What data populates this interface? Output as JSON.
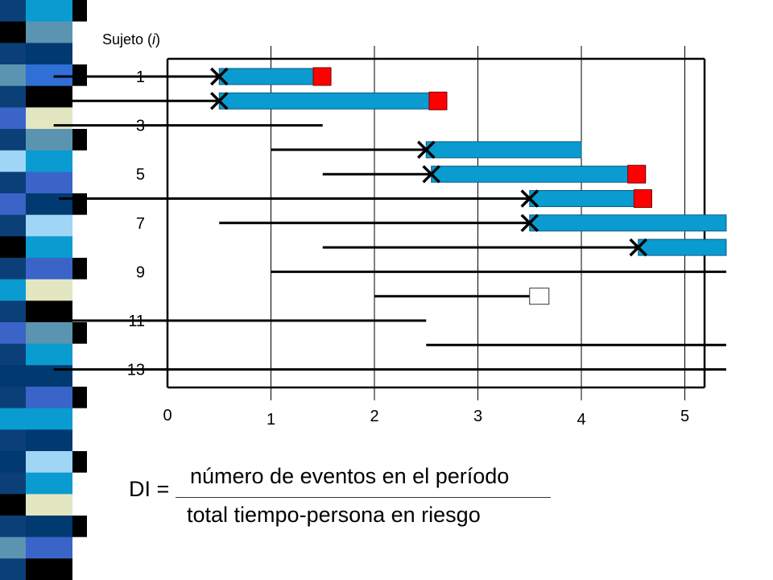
{
  "y_axis_title": "Sujeto (i)",
  "y_axis_title_prefix": "Sujeto (",
  "y_axis_title_var": "i",
  "y_axis_title_suffix": ")",
  "y_tick_labels": [
    "1",
    "3",
    "5",
    "7",
    "9",
    "11",
    "13"
  ],
  "x_origin_label": "0",
  "x_tick_labels": [
    "1",
    "2",
    "3",
    "4",
    "5"
  ],
  "x_axis_max": 5.4,
  "formula": {
    "lhs": "DI =",
    "numerator": "número de eventos en el período",
    "denominator": "total tiempo-persona en riesgo"
  },
  "colors": {
    "risk_bar": "#0a9bd0",
    "event_marker": "#ff0000",
    "censored_marker": "#ffffff",
    "line": "#000000",
    "grid": "#000000"
  },
  "sidebar_stripes": [
    "#0a9bd0",
    "#5b94b0",
    "#003a70",
    "#2f6fd6",
    "#000000",
    "#e2e6c1",
    "#5b94b0",
    "#0a9bd0",
    "#3a64c8",
    "#003a70",
    "#9fd6f5",
    "#0a9bd0",
    "#3a64c8",
    "#e2e6c1",
    "#000000",
    "#5b94b0",
    "#0a9bd0",
    "#003a70",
    "#3a64c8",
    "#0a9bd0",
    "#003a70",
    "#9fd6f5",
    "#0a9bd0",
    "#e2e6c1",
    "#003a70",
    "#3a64c8",
    "#000000"
  ],
  "subjects": [
    {
      "id": 1,
      "entry": -1.1,
      "risk_start": 0.5,
      "end": 1.58,
      "event": true
    },
    {
      "id": 2,
      "entry": -1.1,
      "risk_start": 0.5,
      "end": 2.7,
      "event": true
    },
    {
      "id": 3,
      "entry": -1.1,
      "risk_start": null,
      "end": 1.5,
      "event": false
    },
    {
      "id": 4,
      "entry": 1.0,
      "risk_start": 2.5,
      "end": 4.0,
      "event": false
    },
    {
      "id": 5,
      "entry": 1.5,
      "risk_start": 2.55,
      "end": 4.62,
      "event": true
    },
    {
      "id": 6,
      "entry": -1.05,
      "risk_start": 3.5,
      "end": 4.68,
      "event": true
    },
    {
      "id": 7,
      "entry": 0.5,
      "risk_start": 3.5,
      "end": 5.4,
      "event": false
    },
    {
      "id": 8,
      "entry": 1.5,
      "risk_start": 4.55,
      "end": 5.4,
      "event": false
    },
    {
      "id": 9,
      "entry": 1.0,
      "risk_start": null,
      "end": 5.4,
      "event": false
    },
    {
      "id": 10,
      "entry": 2.0,
      "risk_start": null,
      "end": 3.5,
      "event": false,
      "censored": true
    },
    {
      "id": 11,
      "entry": -1.1,
      "risk_start": null,
      "end": 2.5,
      "event": false
    },
    {
      "id": 12,
      "entry": 2.5,
      "risk_start": null,
      "end": 5.4,
      "event": false
    },
    {
      "id": 13,
      "entry": -1.1,
      "risk_start": null,
      "end": 5.4,
      "event": false
    }
  ]
}
